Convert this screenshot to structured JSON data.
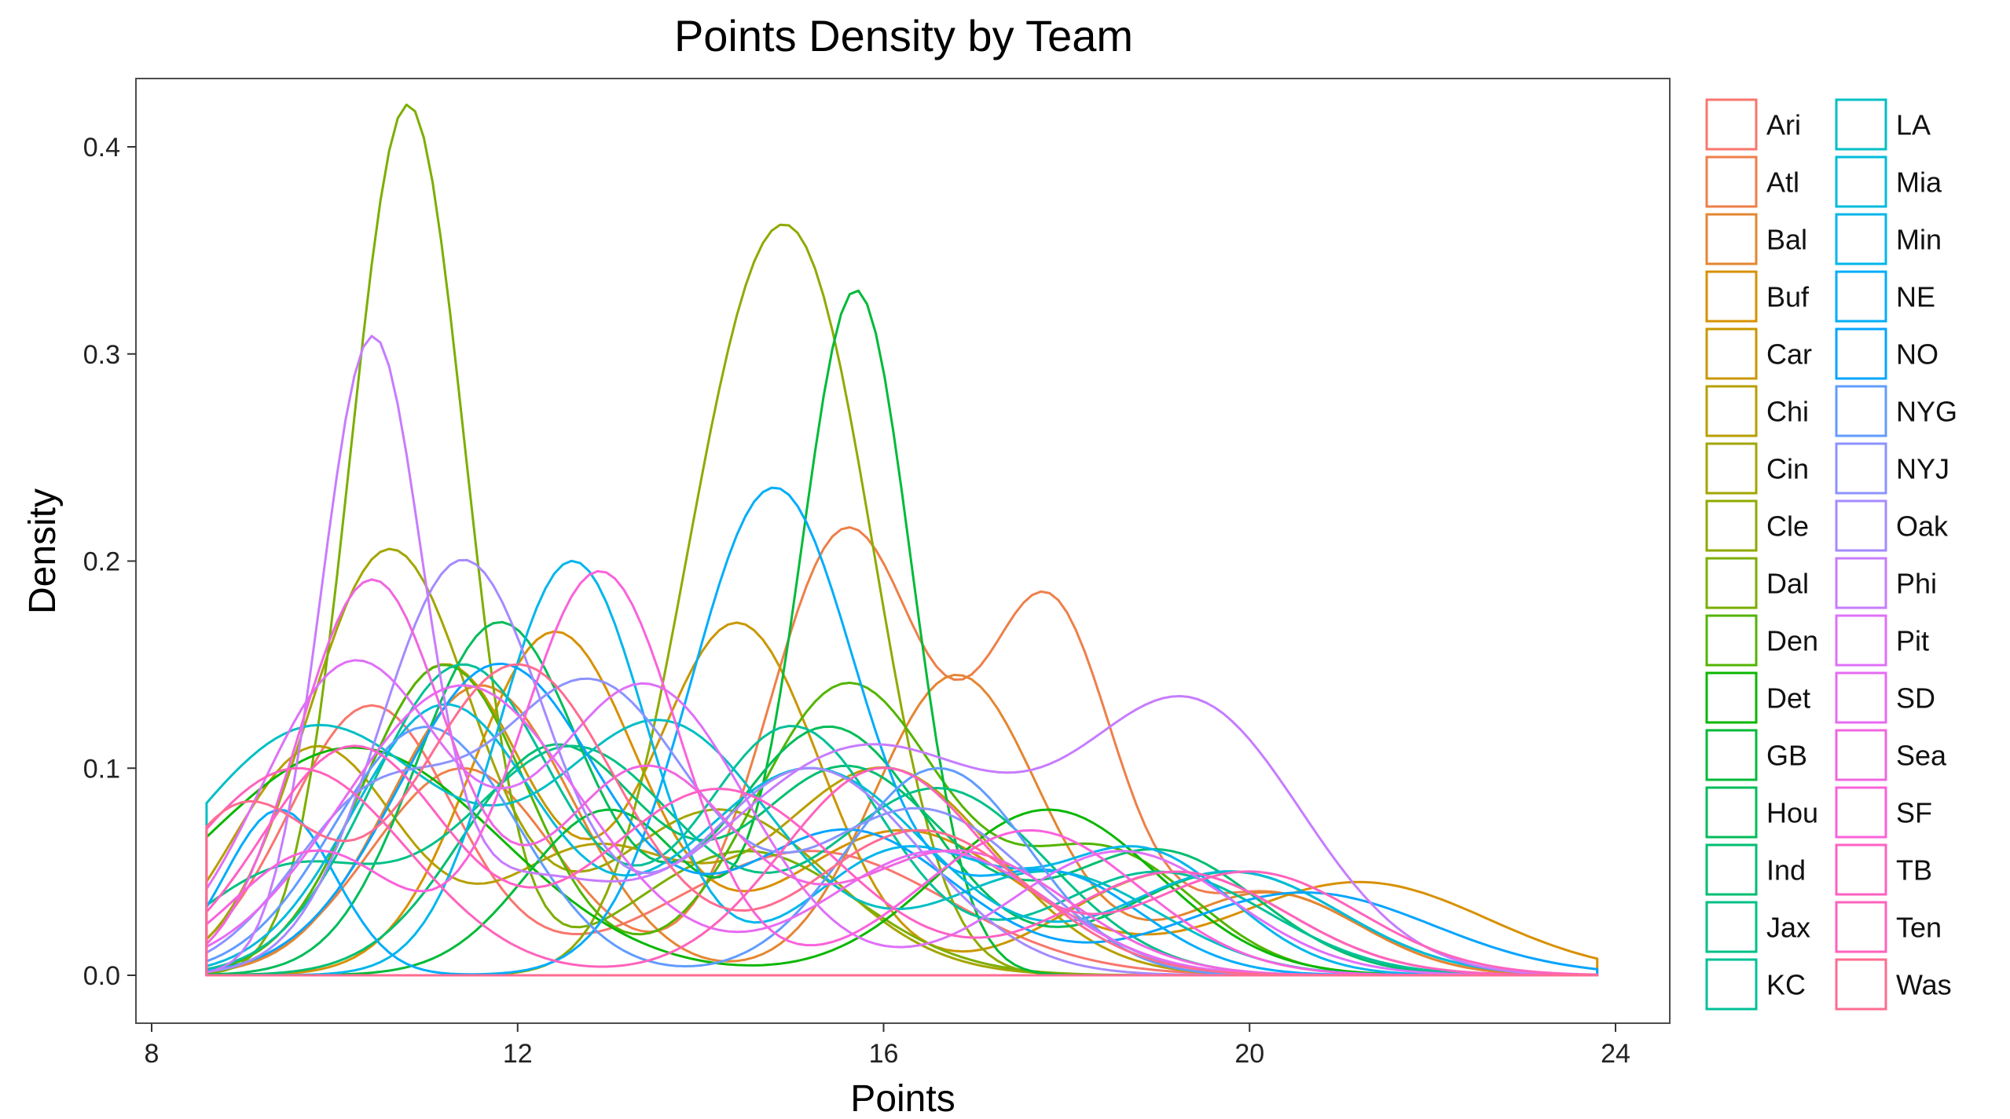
{
  "chart_data": {
    "type": "density",
    "title": "Points Density by Team",
    "xlabel": "Points",
    "ylabel": "Density",
    "xlim": [
      8,
      24
    ],
    "ylim": [
      0,
      0.45
    ],
    "x_ticks": [
      8,
      12,
      16,
      20,
      24
    ],
    "y_ticks": [
      0.0,
      0.1,
      0.2,
      0.3,
      0.4
    ],
    "y_tick_labels": [
      "0.0",
      "0.1",
      "0.2",
      "0.3",
      "0.4"
    ],
    "x_range": [
      8.6,
      23.8
    ],
    "grid": false,
    "legend_position": "right",
    "series": [
      {
        "name": "Ari",
        "color": "#F8766D",
        "peaks": [
          [
            10.4,
            0.13,
            0.9
          ],
          [
            15.2,
            0.06,
            1.5
          ]
        ]
      },
      {
        "name": "Atl",
        "color": "#EE7F49",
        "peaks": [
          [
            11.4,
            0.1,
            1.0
          ],
          [
            15.6,
            0.215,
            0.85
          ],
          [
            17.8,
            0.175,
            0.7
          ],
          [
            20.2,
            0.04,
            1.0
          ]
        ]
      },
      {
        "name": "Bal",
        "color": "#E48631",
        "peaks": [
          [
            11.6,
            0.14,
            1.0
          ],
          [
            16.8,
            0.145,
            0.9
          ],
          [
            20.2,
            0.04,
            1.0
          ]
        ]
      },
      {
        "name": "Buf",
        "color": "#D89000",
        "peaks": [
          [
            12.4,
            0.165,
            0.9
          ],
          [
            16.2,
            0.07,
            1.3
          ],
          [
            21.2,
            0.045,
            1.4
          ]
        ]
      },
      {
        "name": "Car",
        "color": "#C99700",
        "peaks": [
          [
            11.2,
            0.15,
            0.9
          ],
          [
            14.4,
            0.17,
            0.9
          ],
          [
            19.2,
            0.05,
            1.2
          ]
        ]
      },
      {
        "name": "Chi",
        "color": "#B79F00",
        "peaks": [
          [
            9.8,
            0.11,
            0.9
          ],
          [
            12.8,
            0.06,
            1.0
          ],
          [
            16.0,
            0.1,
            1.2
          ]
        ]
      },
      {
        "name": "Cin",
        "color": "#A3A500",
        "peaks": [
          [
            10.6,
            0.205,
            0.9
          ],
          [
            14.2,
            0.08,
            1.2
          ]
        ]
      },
      {
        "name": "Cle",
        "color": "#8FAA00",
        "peaks": [
          [
            14.4,
            0.24,
            0.75
          ],
          [
            15.4,
            0.22,
            0.7
          ]
        ]
      },
      {
        "name": "Dal",
        "color": "#7CAE00",
        "peaks": [
          [
            10.8,
            0.42,
            0.62
          ],
          [
            14.5,
            0.06,
            1.2
          ]
        ]
      },
      {
        "name": "Den",
        "color": "#53B400",
        "peaks": [
          [
            11.2,
            0.15,
            0.9
          ],
          [
            15.6,
            0.14,
            1.0
          ],
          [
            18.4,
            0.06,
            1.0
          ]
        ]
      },
      {
        "name": "Det",
        "color": "#0BB702",
        "peaks": [
          [
            10.2,
            0.11,
            1.6
          ],
          [
            17.8,
            0.08,
            1.2
          ]
        ]
      },
      {
        "name": "GB",
        "color": "#00BA38",
        "peaks": [
          [
            15.7,
            0.33,
            0.6
          ],
          [
            13.0,
            0.08,
            0.9
          ]
        ]
      },
      {
        "name": "Hou",
        "color": "#00BC59",
        "peaks": [
          [
            11.8,
            0.17,
            0.9
          ],
          [
            15.4,
            0.12,
            1.1
          ],
          [
            19.8,
            0.05,
            1.2
          ]
        ]
      },
      {
        "name": "Ind",
        "color": "#00BE70",
        "peaks": [
          [
            12.4,
            0.11,
            1.0
          ],
          [
            15.6,
            0.1,
            1.1
          ],
          [
            19.0,
            0.06,
            1.1
          ]
        ]
      },
      {
        "name": "Jax",
        "color": "#00C086",
        "peaks": [
          [
            9.5,
            0.05,
            1.0
          ],
          [
            12.6,
            0.11,
            1.2
          ],
          [
            16.6,
            0.09,
            1.2
          ]
        ]
      },
      {
        "name": "KC",
        "color": "#00C097",
        "peaks": [
          [
            11.4,
            0.15,
            1.0
          ],
          [
            15.0,
            0.12,
            1.0
          ],
          [
            19.0,
            0.05,
            1.2
          ]
        ]
      },
      {
        "name": "LA",
        "color": "#00BFC4",
        "peaks": [
          [
            9.8,
            0.12,
            1.4
          ],
          [
            13.6,
            0.12,
            1.2
          ],
          [
            17.8,
            0.05,
            1.2
          ]
        ]
      },
      {
        "name": "Mia",
        "color": "#00BBDB",
        "peaks": [
          [
            11.2,
            0.13,
            1.0
          ],
          [
            15.2,
            0.1,
            1.3
          ],
          [
            19.8,
            0.05,
            1.2
          ]
        ]
      },
      {
        "name": "Min",
        "color": "#00B6EB",
        "peaks": [
          [
            12.6,
            0.2,
            0.8
          ],
          [
            16.2,
            0.06,
            1.0
          ],
          [
            18.8,
            0.06,
            1.0
          ]
        ]
      },
      {
        "name": "NE",
        "color": "#00ADFA",
        "peaks": [
          [
            9.4,
            0.08,
            0.6
          ],
          [
            14.8,
            0.235,
            0.9
          ],
          [
            17.8,
            0.05,
            1.0
          ]
        ]
      },
      {
        "name": "NO",
        "color": "#06A4FF",
        "peaks": [
          [
            11.8,
            0.15,
            1.1
          ],
          [
            15.6,
            0.07,
            1.2
          ],
          [
            20.6,
            0.04,
            1.4
          ]
        ]
      },
      {
        "name": "NYG",
        "color": "#619CFF",
        "peaks": [
          [
            11.0,
            0.12,
            1.0
          ],
          [
            16.6,
            0.1,
            1.0
          ]
        ]
      },
      {
        "name": "NYJ",
        "color": "#8B93FF",
        "peaks": [
          [
            10.4,
            0.08,
            0.9
          ],
          [
            12.8,
            0.14,
            1.1
          ],
          [
            16.4,
            0.08,
            1.2
          ]
        ]
      },
      {
        "name": "Oak",
        "color": "#A58AFF",
        "peaks": [
          [
            11.4,
            0.2,
            0.9
          ],
          [
            15.2,
            0.1,
            1.2
          ]
        ]
      },
      {
        "name": "Phi",
        "color": "#C77CFF",
        "peaks": [
          [
            10.4,
            0.3,
            0.55
          ],
          [
            12.0,
            0.04,
            0.9
          ],
          [
            15.8,
            0.11,
            1.6
          ],
          [
            19.4,
            0.125,
            1.2
          ]
        ]
      },
      {
        "name": "Pit",
        "color": "#DF70F8",
        "peaks": [
          [
            10.2,
            0.15,
            1.0
          ],
          [
            13.4,
            0.14,
            1.1
          ],
          [
            18.6,
            0.06,
            1.2
          ]
        ]
      },
      {
        "name": "SD",
        "color": "#E76BF3",
        "peaks": [
          [
            11.4,
            0.14,
            1.3
          ],
          [
            16.6,
            0.06,
            1.2
          ]
        ]
      },
      {
        "name": "Sea",
        "color": "#F066E0",
        "peaks": [
          [
            10.4,
            0.19,
            0.8
          ],
          [
            13.4,
            0.1,
            1.0
          ],
          [
            16.8,
            0.06,
            1.2
          ]
        ]
      },
      {
        "name": "SF",
        "color": "#FA62DB",
        "peaks": [
          [
            12.9,
            0.195,
            0.85
          ],
          [
            9.8,
            0.06,
            0.9
          ],
          [
            17.6,
            0.07,
            1.2
          ]
        ]
      },
      {
        "name": "TB",
        "color": "#FF61C3",
        "peaks": [
          [
            10.2,
            0.11,
            1.0
          ],
          [
            14.2,
            0.09,
            1.3
          ],
          [
            19.2,
            0.05,
            1.2
          ]
        ]
      },
      {
        "name": "Ten",
        "color": "#FF62BC",
        "peaks": [
          [
            9.6,
            0.1,
            1.2
          ],
          [
            16.0,
            0.1,
            1.1
          ],
          [
            20.0,
            0.05,
            1.2
          ]
        ]
      },
      {
        "name": "Was",
        "color": "#FF6C91",
        "peaks": [
          [
            9.0,
            0.08,
            0.8
          ],
          [
            12.0,
            0.15,
            1.1
          ],
          [
            16.4,
            0.07,
            1.2
          ]
        ]
      }
    ]
  }
}
